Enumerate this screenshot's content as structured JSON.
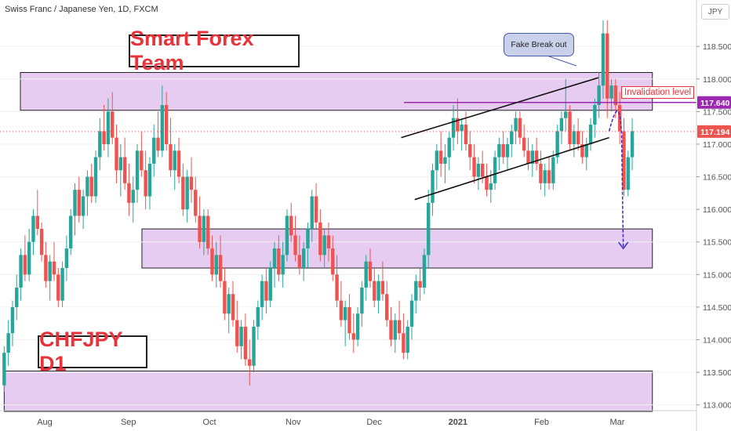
{
  "header": {
    "title": "Swiss Franc / Japanese Yen, 1D, FXCM",
    "currency": "JPY"
  },
  "annotations": {
    "brand": "Smart Forex Team",
    "symbol_label": "CHFJPY D1",
    "fake_breakout": "Fake Break out",
    "invalidation": "Invalidation level"
  },
  "price_tags": {
    "invalidation": "117.640",
    "last": "117.194"
  },
  "colors": {
    "up": "#26a69a",
    "down": "#ef5350",
    "zone_fill": "#e6ccf0",
    "invalidation_line": "#9c27b0",
    "projection": "#3a2dbd",
    "last_price_tag": "#ef5350",
    "invalidation_tag": "#9c27b0"
  },
  "chart_data": {
    "type": "candlestick",
    "title": "Swiss Franc / Japanese Yen, 1D, FXCM",
    "x_axis": {
      "labels": [
        "Aug",
        "Sep",
        "Oct",
        "Nov",
        "Dec",
        "2021",
        "Feb",
        "Mar"
      ],
      "label_days": [
        15,
        46,
        76,
        107,
        137,
        168,
        199,
        227
      ]
    },
    "y_axis": {
      "range": [
        112.9,
        119.2
      ],
      "ticks": [
        "113.000",
        "113.500",
        "114.000",
        "114.500",
        "115.000",
        "115.500",
        "116.000",
        "116.500",
        "117.000",
        "117.500",
        "118.000",
        "118.500"
      ],
      "position": "right"
    },
    "zones": [
      {
        "from_day": 6,
        "to_day": 240,
        "y1": 117.52,
        "y2": 118.1
      },
      {
        "from_day": 51,
        "to_day": 240,
        "y1": 115.1,
        "y2": 115.7
      },
      {
        "from_day": 0,
        "to_day": 240,
        "y1": 112.9,
        "y2": 113.52
      }
    ],
    "invalidation_level": 117.64,
    "last_price": 117.194,
    "trendlines": [
      {
        "x1_day": 147,
        "y1": 117.1,
        "x2_day": 220,
        "y2": 118.02
      },
      {
        "x1_day": 152,
        "y1": 116.15,
        "x2_day": 224,
        "y2": 117.1
      }
    ],
    "candles_ohlc": [
      [
        113.3,
        113.9,
        113.2,
        113.8
      ],
      [
        113.8,
        114.3,
        113.6,
        114.1
      ],
      [
        114.1,
        114.6,
        113.9,
        114.5
      ],
      [
        114.5,
        115.0,
        114.3,
        114.8
      ],
      [
        114.8,
        115.4,
        114.6,
        115.3
      ],
      [
        115.3,
        115.6,
        114.9,
        115.0
      ],
      [
        115.0,
        115.7,
        114.9,
        115.5
      ],
      [
        115.5,
        116.0,
        115.3,
        115.9
      ],
      [
        115.9,
        116.3,
        115.6,
        115.7
      ],
      [
        115.7,
        115.8,
        115.2,
        115.3
      ],
      [
        115.3,
        115.5,
        114.8,
        114.9
      ],
      [
        114.9,
        115.3,
        114.6,
        115.2
      ],
      [
        115.2,
        115.5,
        114.9,
        115.0
      ],
      [
        115.0,
        115.1,
        114.5,
        114.6
      ],
      [
        114.6,
        115.2,
        114.5,
        115.1
      ],
      [
        115.1,
        115.6,
        114.9,
        115.4
      ],
      [
        115.4,
        116.0,
        115.3,
        115.9
      ],
      [
        115.9,
        116.4,
        115.6,
        116.3
      ],
      [
        116.3,
        116.5,
        115.8,
        115.9
      ],
      [
        115.9,
        116.3,
        115.7,
        116.2
      ],
      [
        116.2,
        116.6,
        115.9,
        116.5
      ],
      [
        116.5,
        116.7,
        116.1,
        116.2
      ],
      [
        116.2,
        116.9,
        116.1,
        116.8
      ],
      [
        116.8,
        117.4,
        116.6,
        117.2
      ],
      [
        117.2,
        117.6,
        116.9,
        117.0
      ],
      [
        117.0,
        117.7,
        116.8,
        117.5
      ],
      [
        117.5,
        117.8,
        117.0,
        117.1
      ],
      [
        117.1,
        117.3,
        116.4,
        116.6
      ],
      [
        116.6,
        117.0,
        116.2,
        116.8
      ],
      [
        116.8,
        117.1,
        116.3,
        116.4
      ],
      [
        116.4,
        116.7,
        115.9,
        116.1
      ],
      [
        116.1,
        116.5,
        115.8,
        116.3
      ],
      [
        116.3,
        117.0,
        116.1,
        116.9
      ],
      [
        116.9,
        117.2,
        116.5,
        116.6
      ],
      [
        116.6,
        116.9,
        116.0,
        116.2
      ],
      [
        116.2,
        116.8,
        116.0,
        116.7
      ],
      [
        116.7,
        117.3,
        116.5,
        117.1
      ],
      [
        117.1,
        117.5,
        116.8,
        116.9
      ],
      [
        116.9,
        117.9,
        116.8,
        117.6
      ],
      [
        117.6,
        117.8,
        116.9,
        117.0
      ],
      [
        117.0,
        117.4,
        116.5,
        116.6
      ],
      [
        116.6,
        117.0,
        116.3,
        116.9
      ],
      [
        116.9,
        117.1,
        116.4,
        116.5
      ],
      [
        116.5,
        116.7,
        115.9,
        116.0
      ],
      [
        116.0,
        116.6,
        115.8,
        116.5
      ],
      [
        116.5,
        116.8,
        116.1,
        116.3
      ],
      [
        116.3,
        116.5,
        115.8,
        115.9
      ],
      [
        115.9,
        116.2,
        115.4,
        115.5
      ],
      [
        115.5,
        116.0,
        115.3,
        115.9
      ],
      [
        115.9,
        116.0,
        115.3,
        115.4
      ],
      [
        115.4,
        115.6,
        114.9,
        115.0
      ],
      [
        115.0,
        115.5,
        114.8,
        115.3
      ],
      [
        115.3,
        115.6,
        114.8,
        114.9
      ],
      [
        114.9,
        115.1,
        114.3,
        114.4
      ],
      [
        114.4,
        114.8,
        114.1,
        114.7
      ],
      [
        114.7,
        114.9,
        114.2,
        114.3
      ],
      [
        114.3,
        114.6,
        113.8,
        113.9
      ],
      [
        113.9,
        114.3,
        113.7,
        114.2
      ],
      [
        114.2,
        114.4,
        113.6,
        113.7
      ],
      [
        113.7,
        114.0,
        113.3,
        113.6
      ],
      [
        113.6,
        114.3,
        113.5,
        114.2
      ],
      [
        114.2,
        114.6,
        114.0,
        114.5
      ],
      [
        114.5,
        115.0,
        114.3,
        114.9
      ],
      [
        114.9,
        115.1,
        114.4,
        114.6
      ],
      [
        114.6,
        115.2,
        114.5,
        115.1
      ],
      [
        115.1,
        115.5,
        114.8,
        115.4
      ],
      [
        115.4,
        115.6,
        114.9,
        115.0
      ],
      [
        115.0,
        115.5,
        114.8,
        115.3
      ],
      [
        115.3,
        116.0,
        115.2,
        115.9
      ],
      [
        115.9,
        116.1,
        115.5,
        115.6
      ],
      [
        115.6,
        115.9,
        115.2,
        115.3
      ],
      [
        115.3,
        115.6,
        115.0,
        115.1
      ],
      [
        115.1,
        115.5,
        114.9,
        115.4
      ],
      [
        115.4,
        115.8,
        115.1,
        115.7
      ],
      [
        115.7,
        116.3,
        115.5,
        116.2
      ],
      [
        116.2,
        116.4,
        115.7,
        115.8
      ],
      [
        115.8,
        116.0,
        115.2,
        115.3
      ],
      [
        115.3,
        115.7,
        115.1,
        115.6
      ],
      [
        115.6,
        115.8,
        115.2,
        115.4
      ],
      [
        115.4,
        115.6,
        114.9,
        115.0
      ],
      [
        115.0,
        115.3,
        114.5,
        114.6
      ],
      [
        114.6,
        114.9,
        114.2,
        114.3
      ],
      [
        114.3,
        114.6,
        113.9,
        114.5
      ],
      [
        114.5,
        114.7,
        114.0,
        114.1
      ],
      [
        114.1,
        114.4,
        113.8,
        114.0
      ],
      [
        114.0,
        114.5,
        113.9,
        114.4
      ],
      [
        114.4,
        114.9,
        114.2,
        114.8
      ],
      [
        114.8,
        115.3,
        114.6,
        115.2
      ],
      [
        115.2,
        115.4,
        114.8,
        114.9
      ],
      [
        114.9,
        115.1,
        114.5,
        114.6
      ],
      [
        114.6,
        115.0,
        114.4,
        114.9
      ],
      [
        114.9,
        115.2,
        114.6,
        114.7
      ],
      [
        114.7,
        114.9,
        114.2,
        114.3
      ],
      [
        114.3,
        114.5,
        113.9,
        114.0
      ],
      [
        114.0,
        114.4,
        113.8,
        114.3
      ],
      [
        114.3,
        114.6,
        114.0,
        114.1
      ],
      [
        114.1,
        114.4,
        113.7,
        113.8
      ],
      [
        113.8,
        114.3,
        113.7,
        114.2
      ],
      [
        114.2,
        114.7,
        114.0,
        114.6
      ],
      [
        114.6,
        115.0,
        114.4,
        114.9
      ],
      [
        114.9,
        115.1,
        114.6,
        114.8
      ],
      [
        114.8,
        115.4,
        114.7,
        115.3
      ],
      [
        115.3,
        116.3,
        115.1,
        116.1
      ],
      [
        116.1,
        116.7,
        115.9,
        116.6
      ],
      [
        116.6,
        117.0,
        116.3,
        116.9
      ],
      [
        116.9,
        117.2,
        116.5,
        116.7
      ],
      [
        116.7,
        117.0,
        116.4,
        116.8
      ],
      [
        116.8,
        117.2,
        116.6,
        117.1
      ],
      [
        117.1,
        117.6,
        116.9,
        117.4
      ],
      [
        117.4,
        117.7,
        117.0,
        117.2
      ],
      [
        117.2,
        117.4,
        116.9,
        117.3
      ],
      [
        117.3,
        117.5,
        116.9,
        117.0
      ],
      [
        117.0,
        117.2,
        116.6,
        116.8
      ],
      [
        116.8,
        117.0,
        116.4,
        116.5
      ],
      [
        116.5,
        116.8,
        116.3,
        116.7
      ],
      [
        116.7,
        116.9,
        116.4,
        116.5
      ],
      [
        116.5,
        116.7,
        116.2,
        116.3
      ],
      [
        116.3,
        116.6,
        116.1,
        116.4
      ],
      [
        116.4,
        116.9,
        116.3,
        116.8
      ],
      [
        116.8,
        117.1,
        116.6,
        117.0
      ],
      [
        117.0,
        117.2,
        116.7,
        116.8
      ],
      [
        116.8,
        117.1,
        116.6,
        117.0
      ],
      [
        117.0,
        117.3,
        116.8,
        117.2
      ],
      [
        117.2,
        117.5,
        117.0,
        117.4
      ],
      [
        117.4,
        117.5,
        117.0,
        117.1
      ],
      [
        117.1,
        117.3,
        116.8,
        116.9
      ],
      [
        116.9,
        117.1,
        116.6,
        116.7
      ],
      [
        116.7,
        117.0,
        116.5,
        116.9
      ],
      [
        116.9,
        117.1,
        116.6,
        116.7
      ],
      [
        116.7,
        116.9,
        116.3,
        116.4
      ],
      [
        116.4,
        116.7,
        116.2,
        116.6
      ],
      [
        116.6,
        116.8,
        116.3,
        116.4
      ],
      [
        116.4,
        116.9,
        116.3,
        116.8
      ],
      [
        116.8,
        117.3,
        116.7,
        117.2
      ],
      [
        117.2,
        117.5,
        117.0,
        117.4
      ],
      [
        117.4,
        118.0,
        117.2,
        117.5
      ],
      [
        117.5,
        117.6,
        116.9,
        117.0
      ],
      [
        117.0,
        117.3,
        116.8,
        117.2
      ],
      [
        117.2,
        117.4,
        116.9,
        117.0
      ],
      [
        117.0,
        117.2,
        116.7,
        116.8
      ],
      [
        116.8,
        117.1,
        116.6,
        117.0
      ],
      [
        117.0,
        117.4,
        116.9,
        117.3
      ],
      [
        117.3,
        117.7,
        117.1,
        117.6
      ],
      [
        117.6,
        118.1,
        117.4,
        117.9
      ],
      [
        117.9,
        118.9,
        117.7,
        118.7
      ],
      [
        118.7,
        118.9,
        117.4,
        117.7
      ],
      [
        117.7,
        118.0,
        117.5,
        117.9
      ],
      [
        117.9,
        118.0,
        117.4,
        117.6
      ],
      [
        117.6,
        117.8,
        117.0,
        117.2
      ],
      [
        117.2,
        117.4,
        116.2,
        116.3
      ],
      [
        116.3,
        116.9,
        116.2,
        116.8
      ],
      [
        116.8,
        117.4,
        116.6,
        117.2
      ]
    ],
    "candle_start_day": 0,
    "candle_step_days": 1.54
  }
}
